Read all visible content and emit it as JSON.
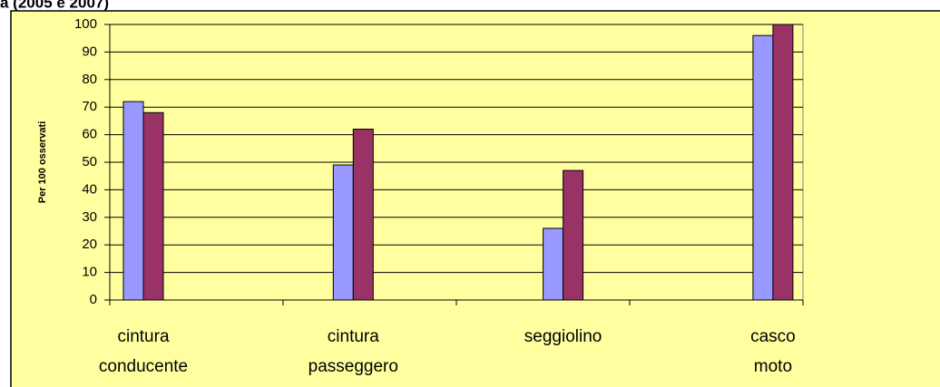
{
  "chart_data": {
    "type": "bar",
    "title": "a (2005 e 2007)",
    "y_label": "Per 100 osservati",
    "categories": [
      "cintura conducente",
      "cintura passeggero",
      "seggiolino",
      "casco moto"
    ],
    "series": [
      {
        "color": "#9999ff",
        "values": [
          72,
          49,
          26,
          96
        ]
      },
      {
        "color": "#993366",
        "values": [
          68,
          62,
          47,
          100
        ]
      }
    ],
    "ylim": [
      0,
      100
    ],
    "yticks": [
      0,
      10,
      20,
      30,
      40,
      50,
      60,
      70,
      80,
      90,
      100
    ],
    "grid": true
  }
}
